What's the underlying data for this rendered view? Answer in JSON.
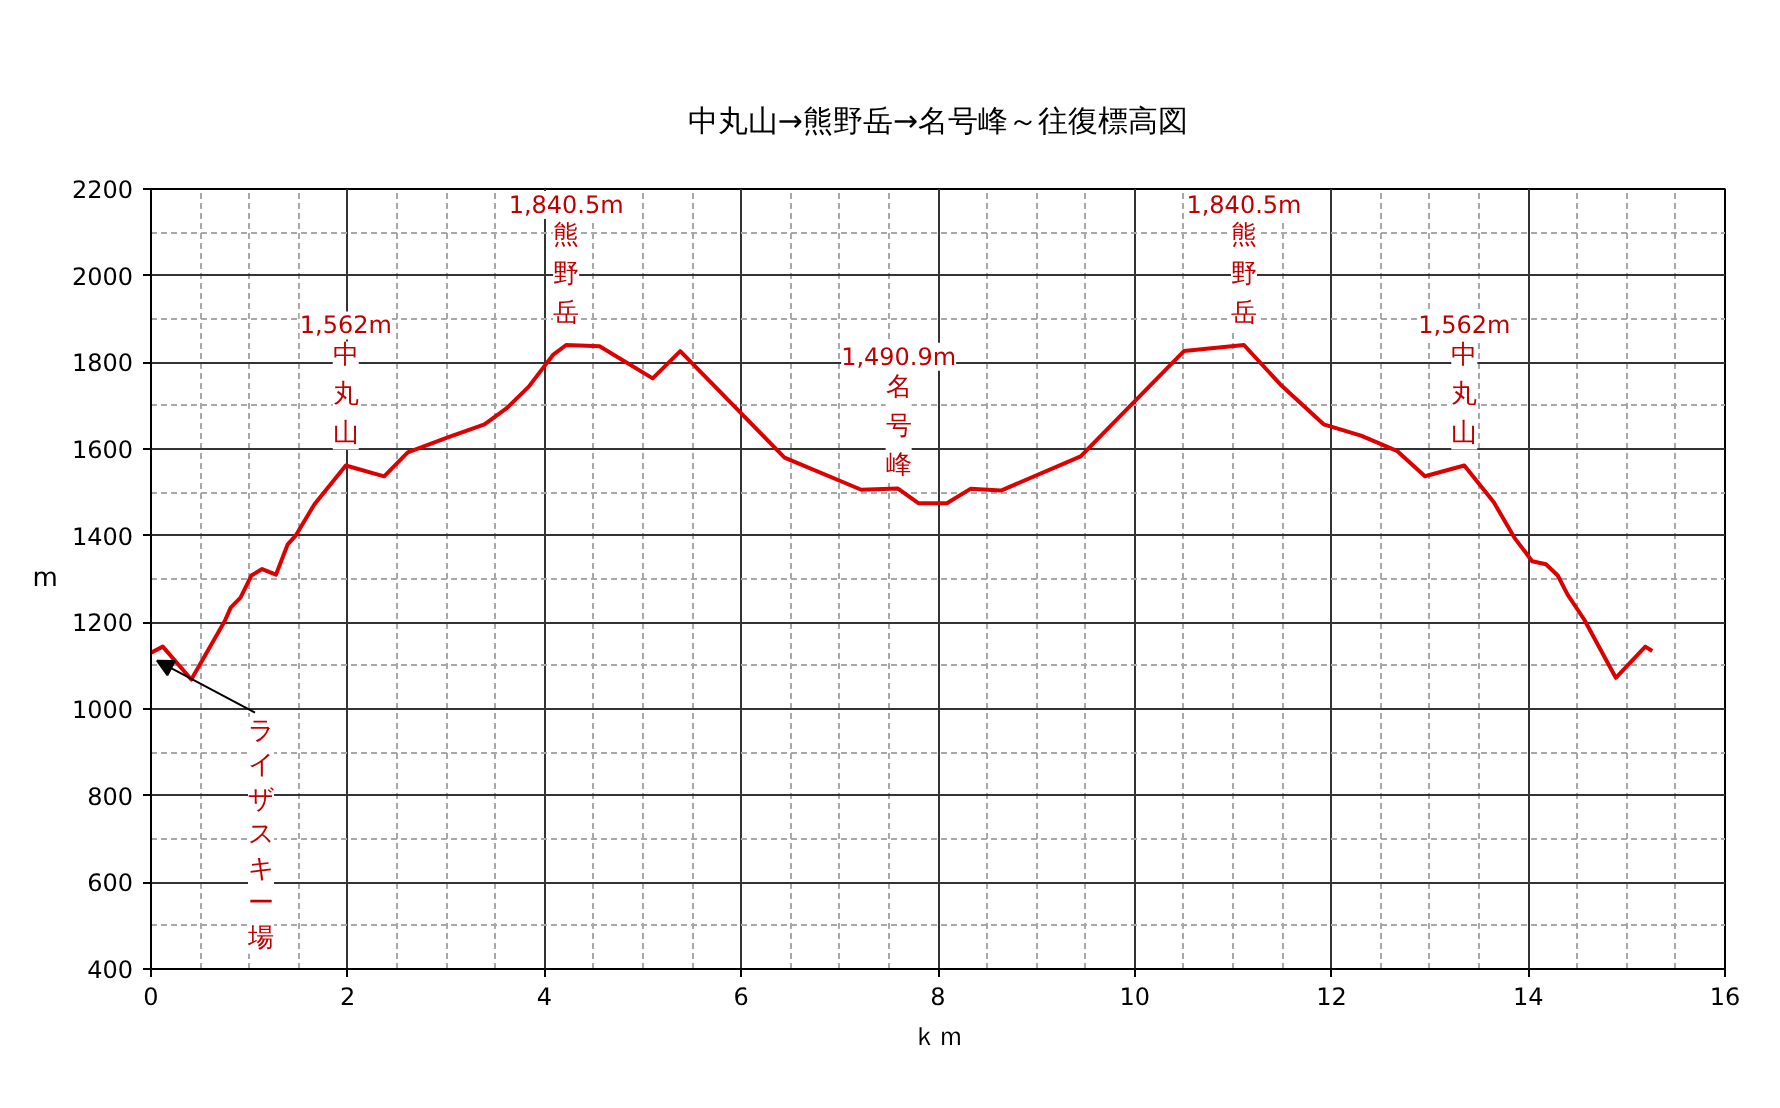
{
  "chart_data": {
    "type": "line",
    "title": "中丸山→熊野岳→名号峰～往復標高図",
    "xlabel": "ｋｍ",
    "ylabel": "m",
    "xlim": [
      0,
      16
    ],
    "ylim": [
      400,
      2200
    ],
    "xticks": [
      0,
      2,
      4,
      6,
      8,
      10,
      12,
      14,
      16
    ],
    "yticks": [
      400,
      600,
      800,
      1000,
      1200,
      1400,
      1600,
      1800,
      2000,
      2200
    ],
    "grid": true,
    "color": "#dd0000",
    "x": [
      0,
      0.12,
      0.41,
      0.75,
      0.81,
      0.91,
      1.02,
      1.13,
      1.27,
      1.39,
      1.47,
      1.66,
      1.98,
      2.37,
      2.61,
      3.01,
      3.39,
      3.62,
      3.84,
      4.09,
      4.22,
      4.56,
      5.1,
      5.38,
      6.44,
      7.22,
      7.59,
      7.8,
      8.09,
      8.33,
      8.64,
      9.45,
      10.5,
      11.11,
      11.48,
      11.92,
      12.3,
      12.67,
      12.95,
      13.35,
      13.65,
      13.86,
      14.04,
      14.18,
      14.3,
      14.4,
      14.57,
      14.89,
      15.19,
      15.26
    ],
    "values": [
      1130,
      1144,
      1068,
      1203,
      1234,
      1257,
      1308,
      1323,
      1310,
      1380,
      1400,
      1472,
      1562,
      1537,
      1592,
      1626,
      1657,
      1695,
      1744,
      1818,
      1840,
      1837,
      1763,
      1826,
      1580,
      1506,
      1509,
      1475,
      1475,
      1508,
      1504,
      1583,
      1826,
      1840,
      1749,
      1657,
      1631,
      1595,
      1537,
      1562,
      1477,
      1395,
      1341,
      1334,
      1308,
      1264,
      1206,
      1072,
      1144,
      1134
    ],
    "annotations": [
      "1,562m",
      {
        "text": "中丸山",
        "x": 1.98,
        "y": 1562
      },
      "1,840.5m",
      {
        "text": "熊野岳",
        "x": 4.22,
        "y": 1840
      },
      "1,490.9m",
      {
        "text": "名号峰",
        "x": 7.6,
        "y": 1490
      },
      "1,840.5m",
      {
        "text": "熊野岳",
        "x": 11.11,
        "y": 1840
      },
      "1,562m",
      {
        "text": "中丸山",
        "x": 13.35,
        "y": 1562
      },
      {
        "text": "ライザスキー場",
        "x": 0,
        "y": 1130
      }
    ]
  }
}
